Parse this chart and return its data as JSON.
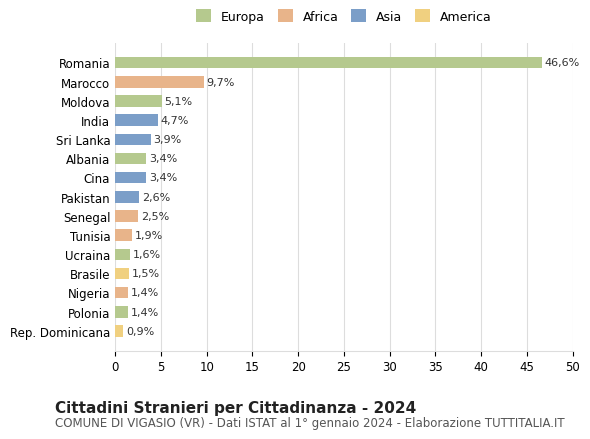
{
  "countries": [
    "Romania",
    "Marocco",
    "Moldova",
    "India",
    "Sri Lanka",
    "Albania",
    "Cina",
    "Pakistan",
    "Senegal",
    "Tunisia",
    "Ucraina",
    "Brasile",
    "Nigeria",
    "Polonia",
    "Rep. Dominicana"
  ],
  "values": [
    46.6,
    9.7,
    5.1,
    4.7,
    3.9,
    3.4,
    3.4,
    2.6,
    2.5,
    1.9,
    1.6,
    1.5,
    1.4,
    1.4,
    0.9
  ],
  "labels": [
    "46,6%",
    "9,7%",
    "5,1%",
    "4,7%",
    "3,9%",
    "3,4%",
    "3,4%",
    "2,6%",
    "2,5%",
    "1,9%",
    "1,6%",
    "1,5%",
    "1,4%",
    "1,4%",
    "0,9%"
  ],
  "colors": [
    "#b5c98e",
    "#e8b48a",
    "#b5c98e",
    "#7b9ec8",
    "#7b9ec8",
    "#b5c98e",
    "#7b9ec8",
    "#7b9ec8",
    "#e8b48a",
    "#e8b48a",
    "#b5c98e",
    "#f0d080",
    "#e8b48a",
    "#b5c98e",
    "#f0d080"
  ],
  "continent": [
    "Europa",
    "Africa",
    "Europa",
    "Asia",
    "Asia",
    "Europa",
    "Asia",
    "Asia",
    "Africa",
    "Africa",
    "Europa",
    "America",
    "Africa",
    "Europa",
    "America"
  ],
  "legend_labels": [
    "Europa",
    "Africa",
    "Asia",
    "America"
  ],
  "legend_colors": [
    "#b5c98e",
    "#e8b48a",
    "#7b9ec8",
    "#f0d080"
  ],
  "xlim": [
    0,
    50
  ],
  "xticks": [
    0,
    5,
    10,
    15,
    20,
    25,
    30,
    35,
    40,
    45,
    50
  ],
  "title": "Cittadini Stranieri per Cittadinanza - 2024",
  "subtitle": "COMUNE DI VIGASIO (VR) - Dati ISTAT al 1° gennaio 2024 - Elaborazione TUTTITALIA.IT",
  "bg_color": "#ffffff",
  "grid_color": "#dddddd",
  "label_fontsize": 8.5,
  "title_fontsize": 11,
  "subtitle_fontsize": 8.5
}
